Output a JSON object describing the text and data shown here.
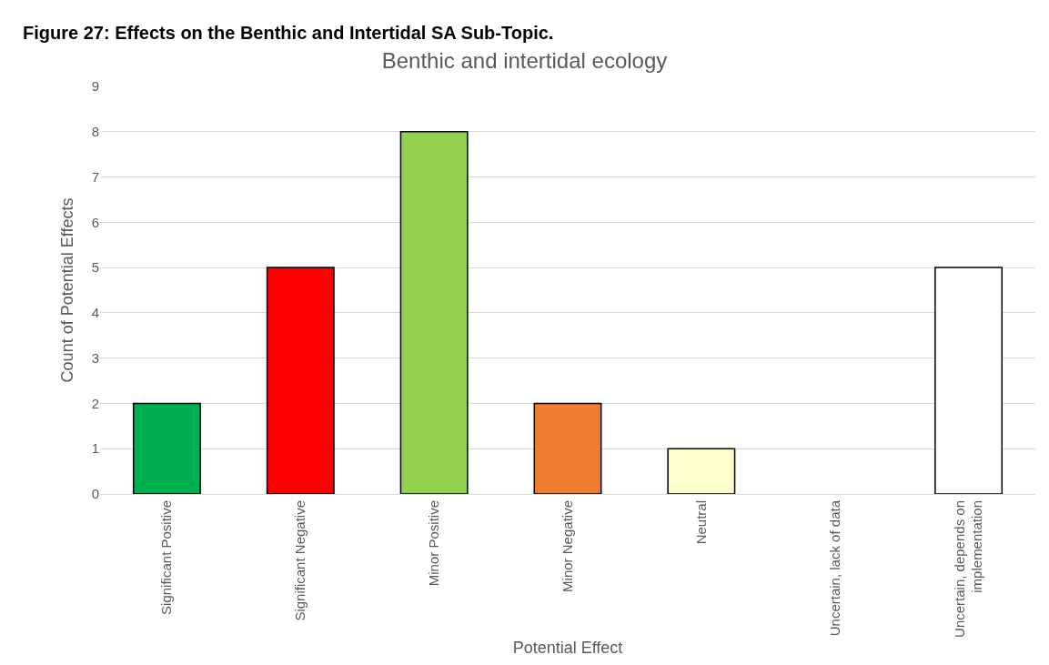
{
  "chart_data": {
    "type": "bar",
    "title": "Benthic and intertidal ecology",
    "subtitle": "Figure 27: Effects on the Benthic and Intertidal SA Sub-Topic.",
    "xlabel": "Potential Effect",
    "ylabel": "Count of Potential Effects",
    "categories": [
      "Significant Positive",
      "Significant Negative",
      "Minor Positive",
      "Minor Negative",
      "Neutral",
      "Uncertain, lack of data",
      "Uncertain, depends on implementation"
    ],
    "values": [
      2,
      5,
      8,
      2,
      1,
      0,
      5
    ],
    "colors": [
      "#00b050",
      "#ff0000",
      "#92d050",
      "#ed7d31",
      "#ffffcc",
      "#ffffff",
      "#ffffff"
    ],
    "ylim": [
      0,
      9
    ],
    "yticks": [
      0,
      1,
      2,
      3,
      4,
      5,
      6,
      7,
      8,
      9
    ],
    "grid": "y",
    "legend": false
  }
}
